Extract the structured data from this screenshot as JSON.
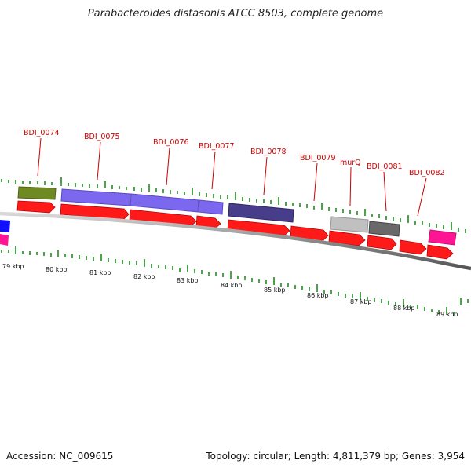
{
  "title": "Parabacteroides distasonis ATCC 8503, complete genome",
  "footer": {
    "accession": "Accession: NC_009615",
    "summary": "Topology: circular; Length: 4,811,379 bp; Genes: 3,954"
  },
  "colors": {
    "gene_arrow": "#ff1a1a",
    "label": "#cc0000",
    "tick": "#1e8c1e",
    "backbone": "#8a8a8a"
  },
  "scale_labels": [
    "79 kbp",
    "80 kbp",
    "81 kbp",
    "82 kbp",
    "83 kbp",
    "84 kbp",
    "85 kbp",
    "86 kbp",
    "87 kbp",
    "88 kbp",
    "89 kbp"
  ],
  "gene_labels": [
    "BDI_0074",
    "BDI_0075",
    "BDI_0076",
    "BDI_0077",
    "BDI_0078",
    "BDI_0079",
    "murQ",
    "BDI_0081",
    "BDI_0082"
  ]
}
